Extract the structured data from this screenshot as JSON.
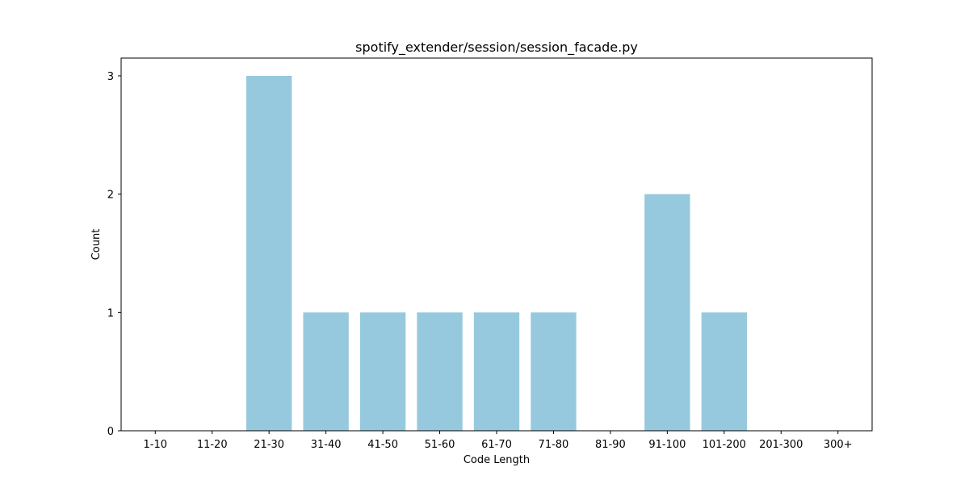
{
  "chart_data": {
    "type": "bar",
    "title": "spotify_extender/session/session_facade.py",
    "xlabel": "Code Length",
    "ylabel": "Count",
    "categories": [
      "1-10",
      "11-20",
      "21-30",
      "31-40",
      "41-50",
      "51-60",
      "61-70",
      "71-80",
      "81-90",
      "91-100",
      "101-200",
      "201-300",
      "300+"
    ],
    "values": [
      0,
      0,
      3,
      1,
      1,
      1,
      1,
      1,
      0,
      2,
      1,
      0,
      0
    ],
    "ylim": [
      0,
      3.15
    ],
    "yticks": [
      "0",
      "1",
      "2",
      "3"
    ],
    "bar_color": "#96c9dd",
    "grid": false,
    "legend": "none"
  }
}
